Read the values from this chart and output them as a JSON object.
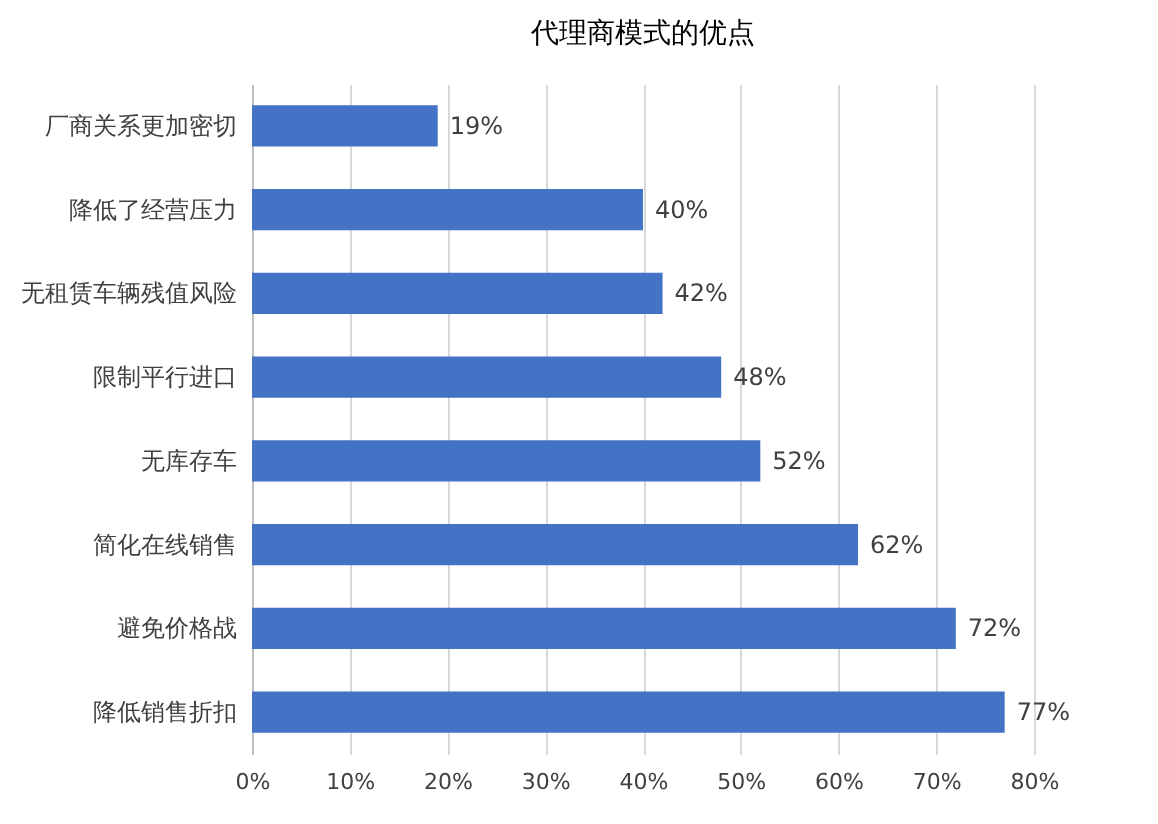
{
  "chart_data": {
    "type": "bar",
    "orientation": "horizontal",
    "title": "代理商模式的优点",
    "categories": [
      "厂商关系更加密切",
      "降低了经营压力",
      "无租赁车辆残值风险",
      "限制平行进口",
      "无库存车",
      "简化在线销售",
      "避免价格战",
      "降低销售折扣"
    ],
    "values": [
      19,
      40,
      42,
      48,
      52,
      62,
      72,
      77
    ],
    "value_labels": [
      "19%",
      "40%",
      "42%",
      "48%",
      "52%",
      "62%",
      "72%",
      "77%"
    ],
    "color": "#4472c4",
    "xlim": [
      0,
      80
    ],
    "xticks": [
      {
        "value": 0,
        "label": "0%"
      },
      {
        "value": 10,
        "label": "10%"
      },
      {
        "value": 20,
        "label": "20%"
      },
      {
        "value": 30,
        "label": "30%"
      },
      {
        "value": 40,
        "label": "40%"
      },
      {
        "value": 50,
        "label": "50%"
      },
      {
        "value": 60,
        "label": "60%"
      },
      {
        "value": 70,
        "label": "70%"
      },
      {
        "value": 80,
        "label": "80%"
      }
    ],
    "grid": "x"
  }
}
